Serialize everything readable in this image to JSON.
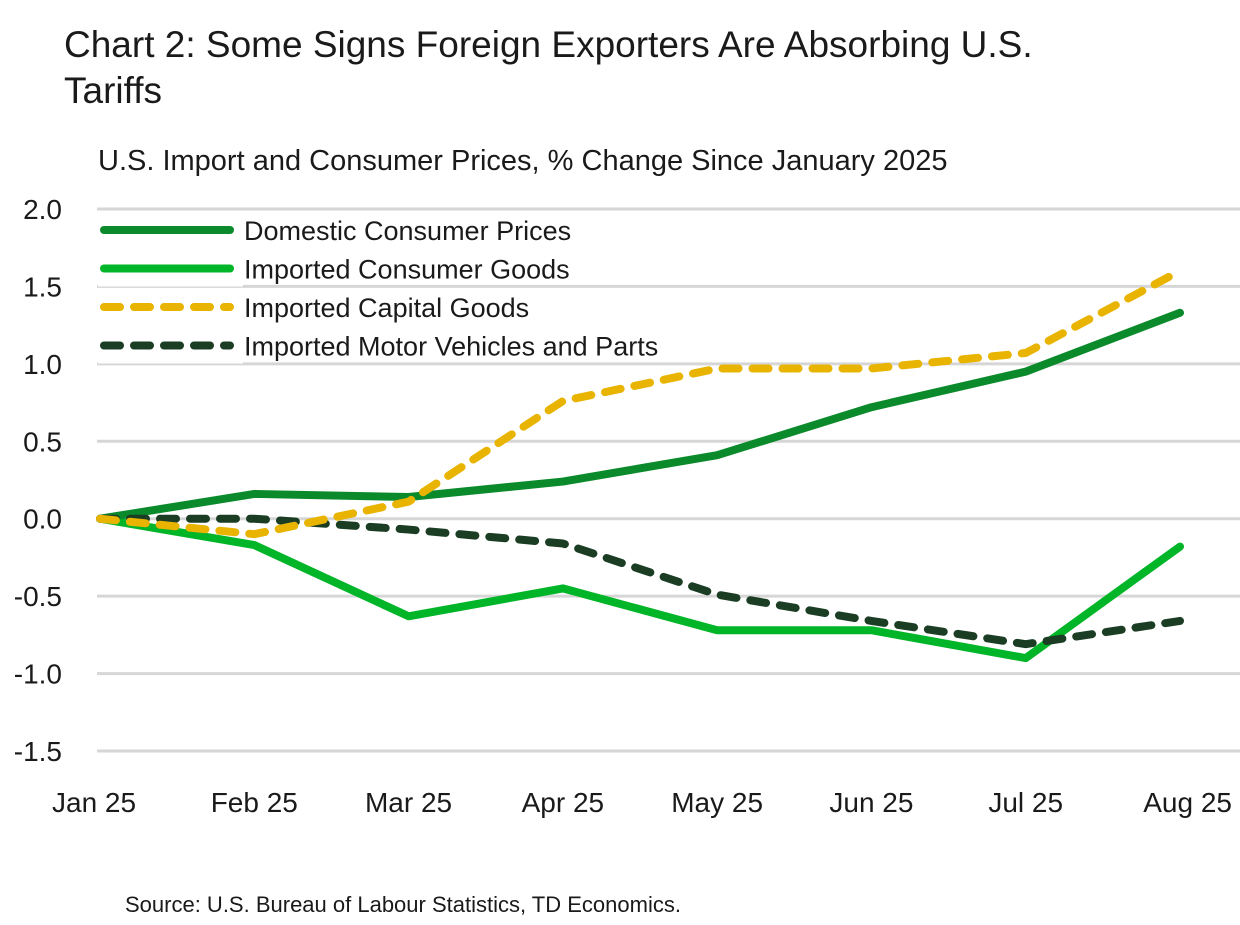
{
  "title": "Chart 2: Some Signs Foreign Exporters Are Absorbing U.S. Tariffs",
  "source": "Source: U.S. Bureau of Labour Statistics, TD Economics.",
  "chart_data": {
    "type": "line",
    "title": "Chart 2: Some Signs Foreign Exporters Are Absorbing U.S. Tariffs",
    "subtitle": "U.S. Import and Consumer Prices, % Change Since January 2025",
    "xlabel": "",
    "ylabel": "",
    "categories": [
      "Jan 25",
      "Feb 25",
      "Mar 25",
      "Apr 25",
      "May 25",
      "Jun 25",
      "Jul 25",
      "Aug 25"
    ],
    "ylim": [
      -1.5,
      2.0
    ],
    "yticks": [
      "2.0",
      "1.5",
      "1.0",
      "0.5",
      "0.0",
      "-0.5",
      "-1.0",
      "-1.5"
    ],
    "grid": true,
    "legend_position": "top-left",
    "series": [
      {
        "name": "Domestic Consumer Prices",
        "color": "#0a8a2a",
        "style": "solid",
        "values": [
          0,
          0.16,
          0.14,
          0.24,
          0.41,
          0.72,
          0.95,
          1.33
        ]
      },
      {
        "name": "Imported Consumer Goods",
        "color": "#00b527",
        "style": "solid",
        "values": [
          0,
          -0.17,
          -0.63,
          -0.45,
          -0.72,
          -0.72,
          -0.9,
          -0.18
        ]
      },
      {
        "name": "Imported Capital Goods",
        "color": "#e8b400",
        "style": "dashed",
        "values": [
          0,
          -0.1,
          0.11,
          0.76,
          0.97,
          0.97,
          1.07,
          1.6
        ]
      },
      {
        "name": "Imported Motor Vehicles and Parts",
        "color": "#1b3d24",
        "style": "dashed",
        "values": [
          0,
          0,
          -0.07,
          -0.16,
          -0.49,
          -0.66,
          -0.81,
          -0.66
        ]
      }
    ]
  }
}
